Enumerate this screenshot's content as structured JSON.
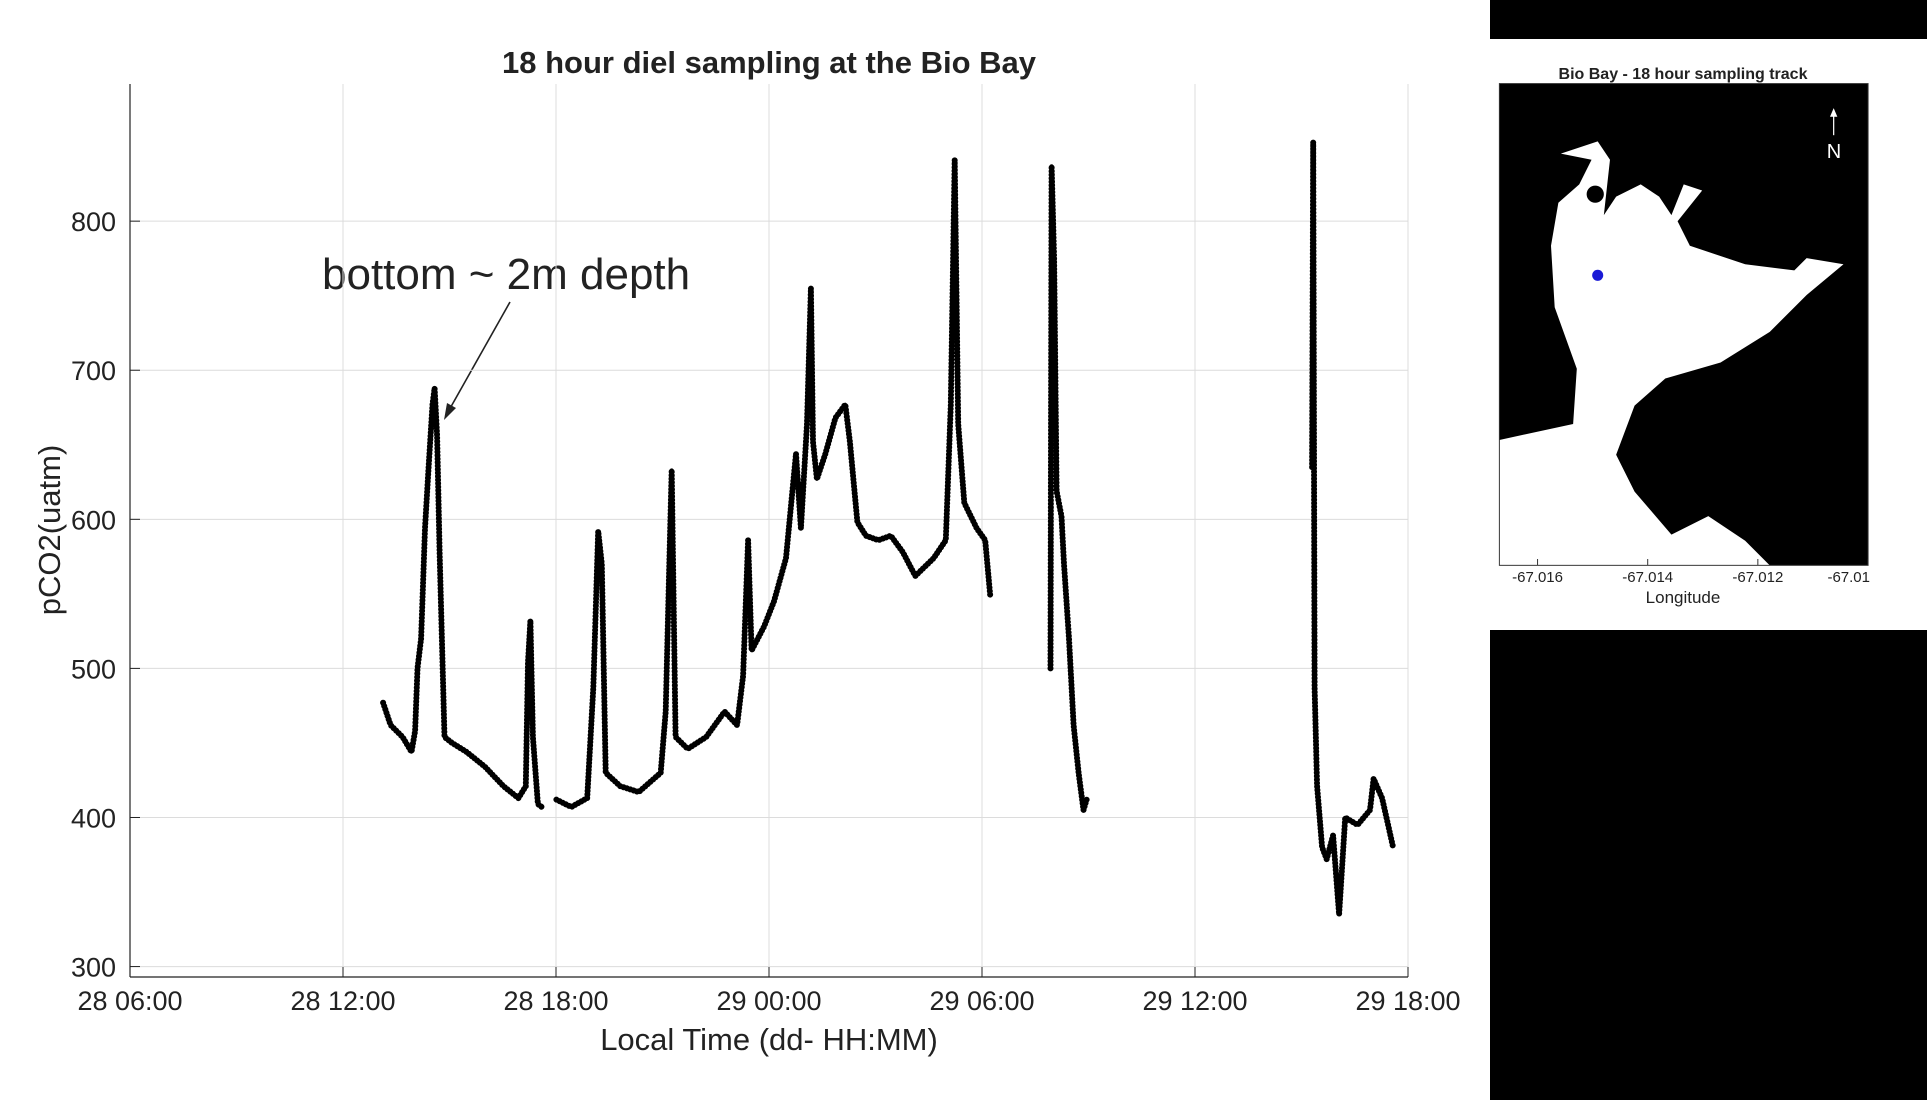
{
  "chart_data": [
    {
      "type": "line",
      "title": "18 hour diel sampling at the Bio Bay",
      "xlabel": "Local Time (dd- HH:MM)",
      "ylabel": "pCO2(uatm)",
      "annotation": "bottom ~ 2m depth",
      "color": "#000000",
      "grid": true,
      "xlim": [
        6,
        42
      ],
      "ylim": [
        293,
        892
      ],
      "xticks": [
        {
          "value": 6,
          "label": "28 06:00"
        },
        {
          "value": 12,
          "label": "28 12:00"
        },
        {
          "value": 18,
          "label": "28 18:00"
        },
        {
          "value": 24,
          "label": "29 00:00"
        },
        {
          "value": 30,
          "label": "29 06:00"
        },
        {
          "value": 36,
          "label": "29 12:00"
        },
        {
          "value": 42,
          "label": "29 18:00"
        }
      ],
      "yticks": [
        300,
        400,
        500,
        600,
        700,
        800
      ],
      "x": [
        13.13,
        13.34,
        13.68,
        13.93,
        14.03,
        14.1,
        14.2,
        14.31,
        14.41,
        14.52,
        14.58,
        14.65,
        14.72,
        14.86,
        15.07,
        15.48,
        16.0,
        16.52,
        16.94,
        17.15,
        17.21,
        17.28,
        17.35,
        17.49,
        17.6,
        null,
        18.01,
        18.43,
        18.88,
        19.05,
        19.19,
        19.29,
        19.4,
        19.81,
        20.33,
        20.95,
        21.09,
        21.2,
        21.26,
        21.37,
        21.71,
        22.23,
        22.75,
        23.1,
        23.27,
        23.41,
        23.51,
        23.86,
        24.14,
        24.48,
        24.66,
        24.76,
        24.9,
        25.07,
        25.18,
        25.24,
        25.35,
        25.59,
        25.87,
        26.15,
        26.28,
        26.49,
        26.73,
        27.08,
        27.43,
        27.77,
        28.12,
        28.64,
        28.98,
        29.12,
        29.23,
        29.33,
        29.5,
        29.85,
        30.09,
        30.23,
        null,
        31.93,
        31.96,
        32.03,
        32.1,
        32.24,
        32.31,
        32.45,
        32.58,
        32.72,
        32.86,
        32.96,
        null,
        39.3,
        39.33,
        39.37,
        39.44,
        39.58,
        39.71,
        39.89,
        40.06,
        40.23,
        40.58,
        40.93,
        41.03,
        41.27,
        41.44,
        41.58
      ],
      "values": [
        477,
        462,
        454,
        444,
        458,
        500,
        520,
        594,
        635,
        677,
        688,
        656,
        578,
        454,
        450,
        444,
        434,
        421,
        413,
        421,
        504,
        532,
        454,
        409,
        407,
        null,
        412,
        407,
        413,
        487,
        592,
        570,
        430,
        421,
        417,
        430,
        471,
        578,
        633,
        454,
        446,
        454,
        471,
        462,
        495,
        586,
        512,
        528,
        545,
        574,
        619,
        644,
        594,
        664,
        755,
        652,
        627,
        644,
        668,
        677,
        652,
        598,
        589,
        586,
        589,
        578,
        562,
        574,
        586,
        677,
        841,
        664,
        611,
        594,
        586,
        549,
        null,
        500,
        837,
        775,
        619,
        602,
        570,
        520,
        462,
        430,
        405,
        413,
        null,
        635,
        853,
        487,
        421,
        380,
        372,
        388,
        335,
        400,
        395,
        405,
        426,
        413,
        395,
        380
      ]
    },
    {
      "type": "map",
      "title": "Bio Bay - 18 hour sampling track",
      "xlabel": "Longitude",
      "north": "N",
      "xlim": [
        -67.0167,
        -67.01
      ],
      "xticks": [
        -67.016,
        -67.014,
        -67.012,
        -67.01
      ]
    }
  ]
}
